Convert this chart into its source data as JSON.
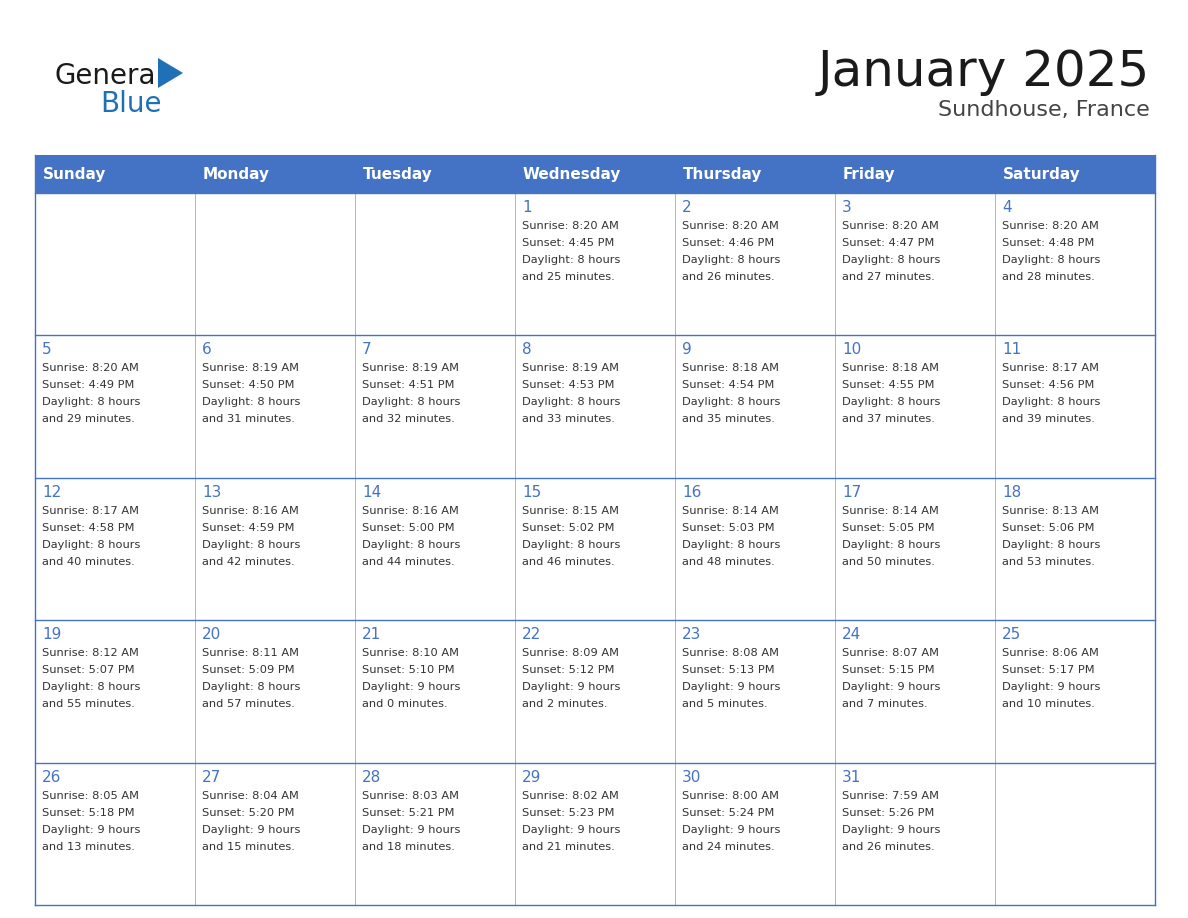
{
  "title": "January 2025",
  "subtitle": "Sundhouse, France",
  "days_of_week": [
    "Sunday",
    "Monday",
    "Tuesday",
    "Wednesday",
    "Thursday",
    "Friday",
    "Saturday"
  ],
  "header_bg": "#4472C4",
  "header_text": "#FFFFFF",
  "cell_bg_light": "#FFFFFF",
  "cell_bg_alt": "#F0F0F0",
  "border_color_dark": "#4472C4",
  "border_color_light": "#AAAAAA",
  "day_number_color": "#4472C4",
  "cell_text_color": "#333333",
  "title_color": "#1a1a1a",
  "subtitle_color": "#444444",
  "logo_general_color": "#1a1a1a",
  "logo_blue_color": "#2070B8",
  "logo_triangle_color": "#2070B8",
  "weeks": [
    [
      {
        "day": "",
        "sunrise": "",
        "sunset": "",
        "daylight": ""
      },
      {
        "day": "",
        "sunrise": "",
        "sunset": "",
        "daylight": ""
      },
      {
        "day": "",
        "sunrise": "",
        "sunset": "",
        "daylight": ""
      },
      {
        "day": "1",
        "sunrise": "8:20 AM",
        "sunset": "4:45 PM",
        "daylight": "8 hours and 25 minutes."
      },
      {
        "day": "2",
        "sunrise": "8:20 AM",
        "sunset": "4:46 PM",
        "daylight": "8 hours and 26 minutes."
      },
      {
        "day": "3",
        "sunrise": "8:20 AM",
        "sunset": "4:47 PM",
        "daylight": "8 hours and 27 minutes."
      },
      {
        "day": "4",
        "sunrise": "8:20 AM",
        "sunset": "4:48 PM",
        "daylight": "8 hours and 28 minutes."
      }
    ],
    [
      {
        "day": "5",
        "sunrise": "8:20 AM",
        "sunset": "4:49 PM",
        "daylight": "8 hours and 29 minutes."
      },
      {
        "day": "6",
        "sunrise": "8:19 AM",
        "sunset": "4:50 PM",
        "daylight": "8 hours and 31 minutes."
      },
      {
        "day": "7",
        "sunrise": "8:19 AM",
        "sunset": "4:51 PM",
        "daylight": "8 hours and 32 minutes."
      },
      {
        "day": "8",
        "sunrise": "8:19 AM",
        "sunset": "4:53 PM",
        "daylight": "8 hours and 33 minutes."
      },
      {
        "day": "9",
        "sunrise": "8:18 AM",
        "sunset": "4:54 PM",
        "daylight": "8 hours and 35 minutes."
      },
      {
        "day": "10",
        "sunrise": "8:18 AM",
        "sunset": "4:55 PM",
        "daylight": "8 hours and 37 minutes."
      },
      {
        "day": "11",
        "sunrise": "8:17 AM",
        "sunset": "4:56 PM",
        "daylight": "8 hours and 39 minutes."
      }
    ],
    [
      {
        "day": "12",
        "sunrise": "8:17 AM",
        "sunset": "4:58 PM",
        "daylight": "8 hours and 40 minutes."
      },
      {
        "day": "13",
        "sunrise": "8:16 AM",
        "sunset": "4:59 PM",
        "daylight": "8 hours and 42 minutes."
      },
      {
        "day": "14",
        "sunrise": "8:16 AM",
        "sunset": "5:00 PM",
        "daylight": "8 hours and 44 minutes."
      },
      {
        "day": "15",
        "sunrise": "8:15 AM",
        "sunset": "5:02 PM",
        "daylight": "8 hours and 46 minutes."
      },
      {
        "day": "16",
        "sunrise": "8:14 AM",
        "sunset": "5:03 PM",
        "daylight": "8 hours and 48 minutes."
      },
      {
        "day": "17",
        "sunrise": "8:14 AM",
        "sunset": "5:05 PM",
        "daylight": "8 hours and 50 minutes."
      },
      {
        "day": "18",
        "sunrise": "8:13 AM",
        "sunset": "5:06 PM",
        "daylight": "8 hours and 53 minutes."
      }
    ],
    [
      {
        "day": "19",
        "sunrise": "8:12 AM",
        "sunset": "5:07 PM",
        "daylight": "8 hours and 55 minutes."
      },
      {
        "day": "20",
        "sunrise": "8:11 AM",
        "sunset": "5:09 PM",
        "daylight": "8 hours and 57 minutes."
      },
      {
        "day": "21",
        "sunrise": "8:10 AM",
        "sunset": "5:10 PM",
        "daylight": "9 hours and 0 minutes."
      },
      {
        "day": "22",
        "sunrise": "8:09 AM",
        "sunset": "5:12 PM",
        "daylight": "9 hours and 2 minutes."
      },
      {
        "day": "23",
        "sunrise": "8:08 AM",
        "sunset": "5:13 PM",
        "daylight": "9 hours and 5 minutes."
      },
      {
        "day": "24",
        "sunrise": "8:07 AM",
        "sunset": "5:15 PM",
        "daylight": "9 hours and 7 minutes."
      },
      {
        "day": "25",
        "sunrise": "8:06 AM",
        "sunset": "5:17 PM",
        "daylight": "9 hours and 10 minutes."
      }
    ],
    [
      {
        "day": "26",
        "sunrise": "8:05 AM",
        "sunset": "5:18 PM",
        "daylight": "9 hours and 13 minutes."
      },
      {
        "day": "27",
        "sunrise": "8:04 AM",
        "sunset": "5:20 PM",
        "daylight": "9 hours and 15 minutes."
      },
      {
        "day": "28",
        "sunrise": "8:03 AM",
        "sunset": "5:21 PM",
        "daylight": "9 hours and 18 minutes."
      },
      {
        "day": "29",
        "sunrise": "8:02 AM",
        "sunset": "5:23 PM",
        "daylight": "9 hours and 21 minutes."
      },
      {
        "day": "30",
        "sunrise": "8:00 AM",
        "sunset": "5:24 PM",
        "daylight": "9 hours and 24 minutes."
      },
      {
        "day": "31",
        "sunrise": "7:59 AM",
        "sunset": "5:26 PM",
        "daylight": "9 hours and 26 minutes."
      },
      {
        "day": "",
        "sunrise": "",
        "sunset": "",
        "daylight": ""
      }
    ]
  ]
}
